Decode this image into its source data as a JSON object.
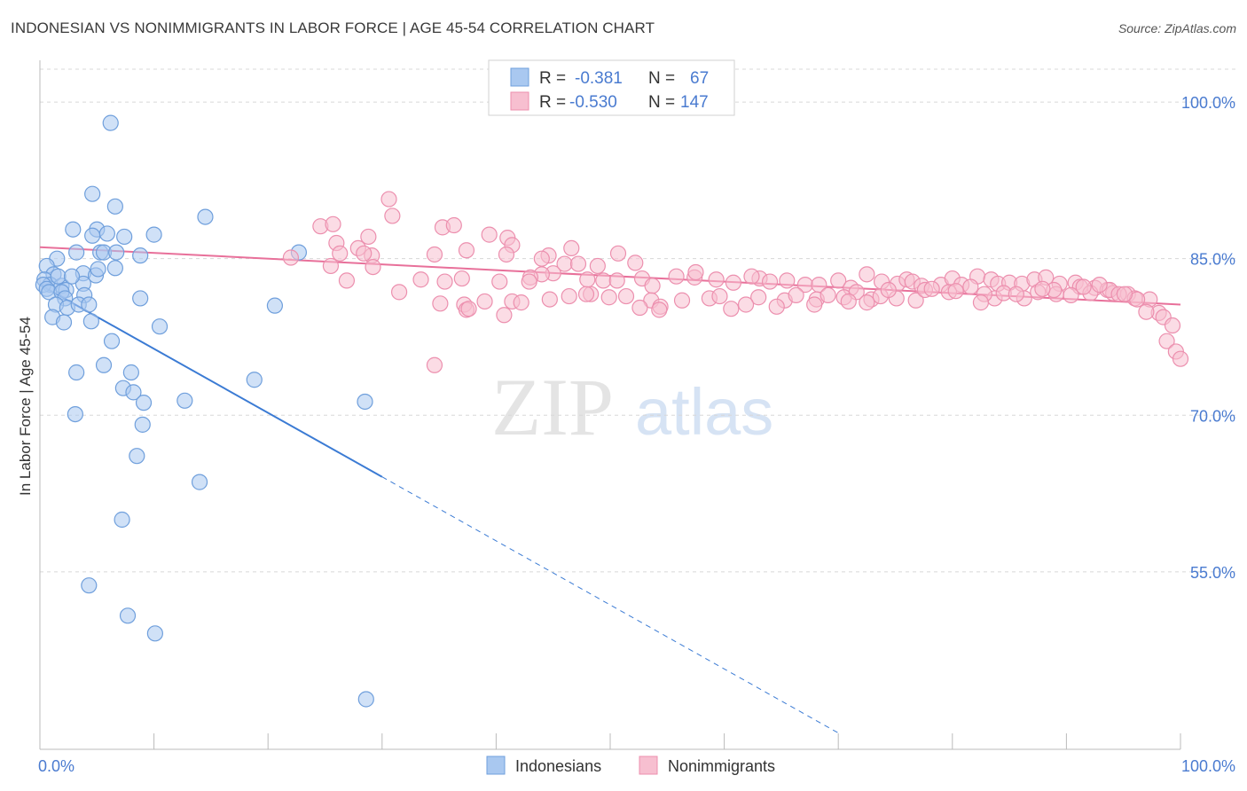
{
  "header": {
    "title": "INDONESIAN VS NONIMMIGRANTS IN LABOR FORCE | AGE 45-54 CORRELATION CHART",
    "source": "Source: ZipAtlas.com"
  },
  "watermark": {
    "zip": "ZIP",
    "atlas": "atlas"
  },
  "colors": {
    "indonesians_fill": "#a9c8f0",
    "indonesians_stroke": "#6f9fdc",
    "indonesians_line": "#3b7bd4",
    "nonimmigrants_fill": "#f7bfd0",
    "nonimmigrants_stroke": "#ec8fae",
    "nonimmigrants_line": "#e8709a",
    "tick_label": "#4a7bd0",
    "grid": "#d8d8d8"
  },
  "legend": {
    "rows": [
      {
        "r_label": "R =",
        "r_value": "-0.381",
        "n_label": "N =",
        "n_value": "67"
      },
      {
        "r_label": "R =",
        "r_value": "-0.530",
        "n_label": "N =",
        "n_value": "147"
      }
    ]
  },
  "chart_data": {
    "type": "scatter",
    "title": "INDONESIAN VS NONIMMIGRANTS IN LABOR FORCE | AGE 45-54 CORRELATION CHART",
    "xlabel": "",
    "ylabel": "In Labor Force | Age 45-54",
    "xlim": [
      0,
      100
    ],
    "ylim": [
      38,
      104
    ],
    "x_tick_labels": [
      {
        "value": 0,
        "label": "0.0%"
      },
      {
        "value": 100,
        "label": "100.0%"
      }
    ],
    "y_tick_labels": [
      {
        "value": 100,
        "label": "100.0%"
      },
      {
        "value": 85,
        "label": "85.0%"
      },
      {
        "value": 70,
        "label": "70.0%"
      },
      {
        "value": 55,
        "label": "55.0%"
      }
    ],
    "grid": true,
    "legend_position": "top-center",
    "series": [
      {
        "name": "Indonesians",
        "r": -0.381,
        "n": 67,
        "trend": {
          "x0": 0,
          "y0": 82.5,
          "x1": 30,
          "y1": 64.1,
          "dashed_to_x": 70
        },
        "points": [
          [
            6.2,
            98.0
          ],
          [
            4.6,
            91.2
          ],
          [
            6.6,
            90.0
          ],
          [
            14.5,
            89.0
          ],
          [
            2.9,
            87.8
          ],
          [
            5.0,
            87.8
          ],
          [
            4.6,
            87.2
          ],
          [
            5.9,
            87.4
          ],
          [
            7.4,
            87.1
          ],
          [
            10.0,
            87.3
          ],
          [
            3.2,
            85.6
          ],
          [
            5.3,
            85.6
          ],
          [
            5.6,
            85.6
          ],
          [
            6.7,
            85.6
          ],
          [
            8.8,
            85.3
          ],
          [
            1.5,
            85.0
          ],
          [
            22.7,
            85.6
          ],
          [
            0.6,
            84.3
          ],
          [
            1.2,
            83.5
          ],
          [
            3.8,
            83.6
          ],
          [
            4.9,
            83.4
          ],
          [
            5.1,
            84.0
          ],
          [
            6.6,
            84.1
          ],
          [
            0.4,
            83.0
          ],
          [
            0.9,
            82.5
          ],
          [
            1.9,
            82.4
          ],
          [
            3.8,
            82.6
          ],
          [
            0.3,
            82.5
          ],
          [
            0.6,
            82.1
          ],
          [
            2.3,
            82.0
          ],
          [
            0.8,
            81.8
          ],
          [
            1.9,
            81.8
          ],
          [
            3.9,
            81.5
          ],
          [
            2.2,
            81.2
          ],
          [
            1.4,
            80.6
          ],
          [
            2.4,
            80.3
          ],
          [
            3.4,
            80.6
          ],
          [
            4.3,
            80.6
          ],
          [
            20.6,
            80.5
          ],
          [
            1.1,
            79.4
          ],
          [
            2.1,
            78.9
          ],
          [
            4.5,
            79.0
          ],
          [
            8.8,
            81.2
          ],
          [
            10.5,
            78.5
          ],
          [
            6.3,
            77.1
          ],
          [
            5.6,
            74.8
          ],
          [
            3.2,
            74.1
          ],
          [
            8.0,
            74.1
          ],
          [
            18.8,
            73.4
          ],
          [
            7.3,
            72.6
          ],
          [
            8.2,
            72.2
          ],
          [
            9.1,
            71.2
          ],
          [
            12.7,
            71.4
          ],
          [
            28.5,
            71.3
          ],
          [
            3.1,
            70.1
          ],
          [
            9.0,
            69.1
          ],
          [
            8.5,
            66.1
          ],
          [
            14.0,
            63.6
          ],
          [
            7.2,
            60.0
          ],
          [
            4.3,
            53.7
          ],
          [
            7.7,
            50.8
          ],
          [
            10.1,
            49.1
          ],
          [
            28.6,
            42.8
          ],
          [
            1.6,
            83.3
          ],
          [
            2.8,
            83.3
          ]
        ]
      },
      {
        "name": "Nonimmigrants",
        "r": -0.53,
        "n": 147,
        "trend": {
          "x0": 0,
          "y0": 86.1,
          "x1": 100,
          "y1": 80.6
        },
        "points": [
          [
            30.6,
            90.7
          ],
          [
            30.9,
            89.1
          ],
          [
            24.6,
            88.1
          ],
          [
            25.7,
            88.3
          ],
          [
            35.3,
            88.0
          ],
          [
            36.3,
            88.2
          ],
          [
            28.8,
            87.1
          ],
          [
            39.4,
            87.3
          ],
          [
            41.0,
            87.0
          ],
          [
            41.4,
            86.3
          ],
          [
            26.0,
            86.5
          ],
          [
            27.9,
            86.0
          ],
          [
            29.1,
            85.3
          ],
          [
            34.6,
            85.4
          ],
          [
            37.4,
            85.8
          ],
          [
            46.6,
            86.0
          ],
          [
            40.9,
            85.4
          ],
          [
            44.6,
            85.3
          ],
          [
            22.0,
            85.1
          ],
          [
            25.5,
            84.3
          ],
          [
            29.2,
            84.2
          ],
          [
            28.4,
            85.5
          ],
          [
            46.0,
            84.5
          ],
          [
            47.2,
            84.5
          ],
          [
            48.9,
            84.3
          ],
          [
            52.2,
            84.6
          ],
          [
            45.0,
            83.6
          ],
          [
            44.0,
            83.5
          ],
          [
            43.0,
            83.2
          ],
          [
            37.0,
            83.1
          ],
          [
            33.4,
            83.0
          ],
          [
            35.5,
            82.8
          ],
          [
            26.9,
            82.9
          ],
          [
            31.5,
            81.8
          ],
          [
            40.3,
            82.8
          ],
          [
            42.9,
            82.8
          ],
          [
            48.0,
            83.0
          ],
          [
            49.4,
            82.9
          ],
          [
            50.6,
            82.9
          ],
          [
            52.8,
            83.1
          ],
          [
            53.7,
            82.4
          ],
          [
            55.8,
            83.3
          ],
          [
            57.4,
            83.2
          ],
          [
            59.3,
            83.0
          ],
          [
            60.8,
            82.7
          ],
          [
            63.1,
            83.1
          ],
          [
            64.0,
            82.8
          ],
          [
            65.5,
            82.9
          ],
          [
            67.1,
            82.5
          ],
          [
            68.3,
            82.5
          ],
          [
            70.0,
            82.9
          ],
          [
            71.1,
            82.2
          ],
          [
            72.5,
            83.5
          ],
          [
            73.8,
            82.8
          ],
          [
            75.2,
            82.6
          ],
          [
            76.0,
            83.0
          ],
          [
            76.5,
            82.8
          ],
          [
            77.3,
            82.4
          ],
          [
            79.0,
            82.5
          ],
          [
            80.0,
            83.1
          ],
          [
            80.8,
            82.5
          ],
          [
            82.2,
            83.3
          ],
          [
            83.4,
            83.0
          ],
          [
            84.0,
            82.6
          ],
          [
            85.0,
            82.7
          ],
          [
            86.1,
            82.6
          ],
          [
            87.2,
            83.0
          ],
          [
            88.2,
            83.2
          ],
          [
            89.4,
            82.6
          ],
          [
            90.8,
            82.7
          ],
          [
            91.2,
            82.3
          ],
          [
            92.5,
            82.2
          ],
          [
            93.6,
            82.0
          ],
          [
            94.1,
            81.7
          ],
          [
            95.4,
            81.6
          ],
          [
            96.0,
            81.2
          ],
          [
            97.3,
            81.1
          ],
          [
            98.1,
            79.8
          ],
          [
            97.0,
            79.9
          ],
          [
            98.5,
            79.4
          ],
          [
            99.3,
            78.6
          ],
          [
            98.8,
            77.1
          ],
          [
            99.6,
            76.1
          ],
          [
            100.0,
            75.4
          ],
          [
            26.3,
            85.5
          ],
          [
            44.0,
            85.0
          ],
          [
            50.7,
            85.5
          ],
          [
            57.5,
            83.7
          ],
          [
            62.4,
            83.3
          ],
          [
            68.1,
            81.1
          ],
          [
            72.9,
            81.1
          ],
          [
            76.8,
            81.0
          ],
          [
            83.7,
            81.2
          ],
          [
            89.1,
            81.6
          ],
          [
            93.8,
            82.0
          ],
          [
            37.2,
            80.6
          ],
          [
            41.4,
            80.9
          ],
          [
            44.7,
            81.1
          ],
          [
            48.3,
            81.6
          ],
          [
            51.4,
            81.4
          ],
          [
            53.6,
            81.0
          ],
          [
            56.3,
            81.0
          ],
          [
            58.7,
            81.2
          ],
          [
            60.6,
            80.2
          ],
          [
            63.0,
            81.3
          ],
          [
            65.3,
            81.0
          ],
          [
            67.9,
            80.6
          ],
          [
            70.5,
            81.3
          ],
          [
            73.7,
            81.4
          ],
          [
            75.1,
            81.2
          ],
          [
            77.6,
            82.0
          ],
          [
            79.7,
            81.8
          ],
          [
            81.6,
            82.3
          ],
          [
            82.8,
            81.6
          ],
          [
            84.5,
            81.7
          ],
          [
            86.3,
            81.2
          ],
          [
            87.5,
            81.8
          ],
          [
            88.9,
            82.0
          ],
          [
            90.4,
            81.5
          ],
          [
            92.1,
            81.7
          ],
          [
            94.6,
            81.6
          ],
          [
            96.2,
            81.1
          ],
          [
            35.1,
            80.7
          ],
          [
            39.0,
            80.9
          ],
          [
            42.2,
            80.8
          ],
          [
            46.4,
            81.4
          ],
          [
            47.9,
            81.6
          ],
          [
            49.9,
            81.3
          ],
          [
            54.4,
            80.4
          ],
          [
            59.6,
            81.4
          ],
          [
            66.3,
            81.5
          ],
          [
            69.1,
            81.5
          ],
          [
            71.6,
            81.8
          ],
          [
            74.4,
            82.0
          ],
          [
            78.2,
            82.1
          ],
          [
            80.3,
            81.9
          ],
          [
            85.6,
            81.6
          ],
          [
            87.9,
            82.1
          ],
          [
            91.5,
            82.3
          ],
          [
            92.9,
            82.5
          ],
          [
            95.1,
            81.6
          ],
          [
            37.4,
            80.1
          ],
          [
            52.6,
            80.3
          ],
          [
            54.3,
            80.1
          ],
          [
            61.9,
            80.6
          ],
          [
            64.6,
            80.4
          ],
          [
            70.9,
            80.9
          ],
          [
            72.5,
            80.8
          ],
          [
            82.5,
            80.8
          ],
          [
            37.6,
            80.2
          ],
          [
            40.7,
            79.6
          ],
          [
            34.6,
            74.8
          ]
        ]
      }
    ]
  },
  "bottom_legend": {
    "items": [
      {
        "label": "Indonesians"
      },
      {
        "label": "Nonimmigrants"
      }
    ]
  }
}
